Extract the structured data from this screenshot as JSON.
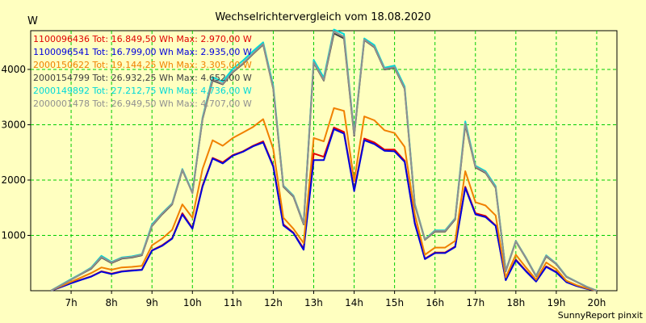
{
  "chart_data": {
    "type": "line",
    "title": "Wechselrichtervergleich vom 18.08.2020",
    "ylabel": "W",
    "xlabel": "",
    "footer": "SunnyReport pinxit",
    "ylim": [
      0,
      4700
    ],
    "xlim": [
      6.0,
      20.5
    ],
    "grid": true,
    "legend_position": "top-left",
    "y_ticks": [
      1000,
      2000,
      3000,
      4000
    ],
    "x_ticks": [
      {
        "value": 7,
        "label": "7h"
      },
      {
        "value": 8,
        "label": "8h"
      },
      {
        "value": 9,
        "label": "9h"
      },
      {
        "value": 10,
        "label": "10h"
      },
      {
        "value": 11,
        "label": "11h"
      },
      {
        "value": 12,
        "label": "12h"
      },
      {
        "value": 13,
        "label": "13h"
      },
      {
        "value": 14,
        "label": "14h"
      },
      {
        "value": 15,
        "label": "15h"
      },
      {
        "value": 16,
        "label": "16h"
      },
      {
        "value": 17,
        "label": "17h"
      },
      {
        "value": 18,
        "label": "18h"
      },
      {
        "value": 19,
        "label": "19h"
      },
      {
        "value": 20,
        "label": "20h"
      }
    ],
    "x": [
      6.5,
      6.75,
      7.0,
      7.25,
      7.5,
      7.75,
      8.0,
      8.25,
      8.5,
      8.75,
      9.0,
      9.25,
      9.5,
      9.75,
      10.0,
      10.25,
      10.5,
      10.75,
      11.0,
      11.25,
      11.5,
      11.75,
      12.0,
      12.25,
      12.5,
      12.75,
      13.0,
      13.25,
      13.5,
      13.75,
      14.0,
      14.25,
      14.5,
      14.75,
      15.0,
      15.25,
      15.5,
      15.75,
      16.0,
      16.25,
      16.5,
      16.75,
      17.0,
      17.25,
      17.5,
      17.75,
      18.0,
      18.25,
      18.5,
      18.75,
      19.0,
      19.25,
      19.5,
      19.75,
      20.0
    ],
    "series": [
      {
        "name": "1100096436",
        "legend": "1100096436 Tot: 16.849,50 Wh Max: 2.970,00 W",
        "color": "#e00000",
        "values": [
          0,
          70,
          140,
          200,
          260,
          350,
          310,
          350,
          370,
          380,
          730,
          820,
          950,
          1400,
          1130,
          1900,
          2400,
          2320,
          2450,
          2520,
          2620,
          2700,
          2260,
          1200,
          1050,
          760,
          2480,
          2420,
          2950,
          2870,
          1820,
          2750,
          2680,
          2550,
          2550,
          2350,
          1230,
          580,
          690,
          690,
          800,
          1880,
          1400,
          1350,
          1180,
          200,
          560,
          360,
          170,
          440,
          340,
          160,
          90,
          40,
          0
        ]
      },
      {
        "name": "1100096541",
        "legend": "1100096541 Tot: 16.799,00 Wh Max: 2.935,00 W",
        "color": "#0000dd",
        "values": [
          0,
          65,
          135,
          195,
          255,
          345,
          300,
          345,
          360,
          375,
          725,
          810,
          940,
          1380,
          1120,
          1880,
          2390,
          2300,
          2440,
          2510,
          2610,
          2680,
          2240,
          1180,
          1040,
          740,
          2360,
          2360,
          2920,
          2840,
          1800,
          2720,
          2650,
          2530,
          2520,
          2330,
          1210,
          570,
          680,
          680,
          790,
          1860,
          1380,
          1330,
          1170,
          190,
          550,
          350,
          165,
          430,
          330,
          155,
          85,
          35,
          0
        ]
      },
      {
        "name": "2000150622",
        "legend": "2000150622 Tot: 19.144,25 Wh Max: 3.305,00 W",
        "color": "#f08000",
        "values": [
          0,
          80,
          160,
          240,
          320,
          420,
          380,
          420,
          430,
          450,
          820,
          940,
          1100,
          1560,
          1320,
          2200,
          2720,
          2620,
          2760,
          2860,
          2960,
          3100,
          2560,
          1320,
          1120,
          860,
          2760,
          2700,
          3300,
          3250,
          1980,
          3150,
          3080,
          2900,
          2850,
          2600,
          1380,
          650,
          780,
          780,
          900,
          2160,
          1600,
          1540,
          1360,
          240,
          650,
          420,
          200,
          510,
          390,
          180,
          100,
          45,
          0
        ]
      },
      {
        "name": "2000154799",
        "legend": "2000154799 Tot: 26.932,25 Wh Max: 4.652,00 W",
        "color": "#404040",
        "values": [
          0,
          100,
          200,
          300,
          400,
          600,
          500,
          580,
          600,
          640,
          1170,
          1380,
          1560,
          2180,
          1770,
          3100,
          3800,
          3730,
          3950,
          4100,
          4280,
          4450,
          3650,
          1880,
          1700,
          1200,
          4120,
          3800,
          4650,
          4560,
          2800,
          4530,
          4400,
          4000,
          4030,
          3650,
          1550,
          920,
          1070,
          1070,
          1290,
          3000,
          2230,
          2130,
          1860,
          350,
          890,
          590,
          260,
          620,
          480,
          250,
          160,
          70,
          0
        ]
      },
      {
        "name": "2000149892",
        "legend": "2000149892 Tot: 27.212,75 Wh Max: 4.736,00 W",
        "color": "#00d8d8",
        "values": [
          0,
          105,
          210,
          310,
          420,
          630,
          520,
          600,
          620,
          660,
          1200,
          1400,
          1580,
          2200,
          1780,
          3130,
          3860,
          3780,
          4010,
          4160,
          4330,
          4490,
          3700,
          1900,
          1720,
          1220,
          4170,
          3850,
          4720,
          4640,
          2840,
          4560,
          4440,
          4030,
          4070,
          3690,
          1570,
          930,
          1090,
          1090,
          1310,
          3060,
          2260,
          2160,
          1890,
          360,
          900,
          600,
          270,
          640,
          490,
          260,
          165,
          75,
          0
        ]
      },
      {
        "name": "2000001478",
        "legend": "2000001478 Tot: 26.949,50 Wh Max: 4.707,00 W",
        "color": "#909090",
        "values": [
          0,
          100,
          200,
          305,
          410,
          610,
          510,
          590,
          610,
          650,
          1180,
          1390,
          1570,
          2190,
          1760,
          3110,
          3820,
          3740,
          3960,
          4110,
          4290,
          4460,
          3660,
          1890,
          1710,
          1210,
          4130,
          3810,
          4690,
          4590,
          2820,
          4540,
          4410,
          4010,
          4040,
          3660,
          1560,
          925,
          1080,
          1080,
          1300,
          3020,
          2240,
          2140,
          1870,
          355,
          895,
          595,
          265,
          630,
          485,
          255,
          162,
          72,
          0
        ]
      }
    ]
  }
}
